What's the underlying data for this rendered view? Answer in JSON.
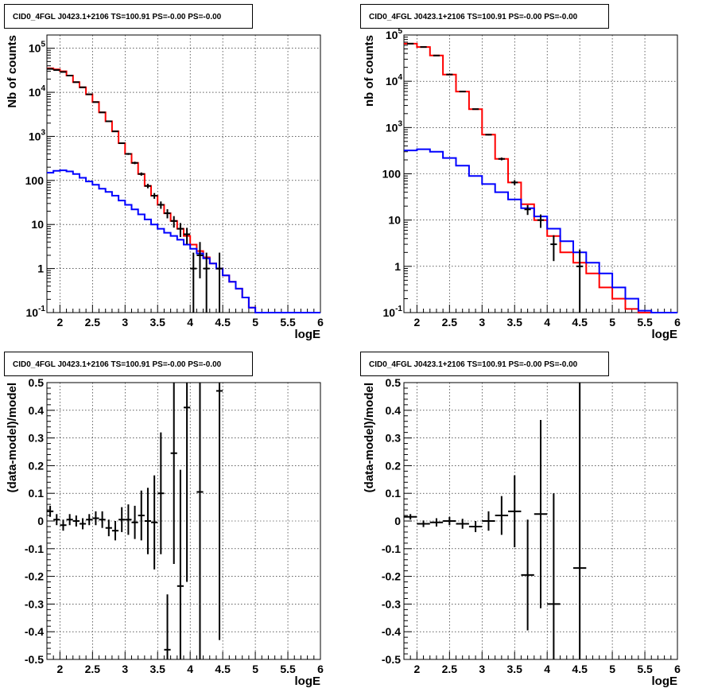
{
  "colors": {
    "model_total": "#ff0000",
    "model_bkg": "#0000ff",
    "data": "#000000",
    "grid": "#000000"
  },
  "chart_data": [
    {
      "type": "line",
      "panel": "top-left",
      "title": "CID0_4FGL J0423.1+2106 TS=100.91 PS=-0.00 PS=-0.00",
      "xlabel": "logE",
      "ylabel": "Nb of counts",
      "xlim": [
        1.8,
        6.0
      ],
      "ylim": [
        0.1,
        200000
      ],
      "yscale": "log",
      "grid": true,
      "xticks": [
        "2",
        "2.5",
        "3",
        "3.5",
        "4",
        "4.5",
        "5",
        "5.5",
        "6"
      ],
      "series": [
        {
          "role": "model-total",
          "color": "#ff0000",
          "binwidth": 0.1,
          "x": [
            1.8,
            1.9,
            2.0,
            2.1,
            2.2,
            2.3,
            2.4,
            2.5,
            2.6,
            2.7,
            2.8,
            2.9,
            3.0,
            3.1,
            3.2,
            3.3,
            3.4,
            3.5,
            3.6,
            3.7,
            3.8,
            3.9,
            4.0,
            4.1,
            4.2,
            4.3,
            4.4,
            4.5,
            4.6,
            4.7,
            4.8,
            4.9,
            5.0,
            5.1,
            5.2,
            5.3,
            5.4,
            5.5,
            5.6,
            5.7,
            5.8,
            5.9
          ],
          "y": [
            35000,
            33000,
            30000,
            24000,
            17000,
            13000,
            9000,
            6000,
            3500,
            2200,
            1300,
            700,
            400,
            250,
            140,
            75,
            45,
            28,
            18,
            12,
            8,
            5.5,
            3.5,
            2.5,
            1.8,
            1.3,
            1.0,
            0.7,
            0.5,
            0.35,
            0.22,
            0.13,
            0.1,
            0.1,
            0.1,
            0.1,
            0.1,
            0.1,
            0.1,
            0.1,
            0.1,
            0.1
          ]
        },
        {
          "role": "model-background",
          "color": "#0000ff",
          "binwidth": 0.1,
          "x": [
            1.8,
            1.9,
            2.0,
            2.1,
            2.2,
            2.3,
            2.4,
            2.5,
            2.6,
            2.7,
            2.8,
            2.9,
            3.0,
            3.1,
            3.2,
            3.3,
            3.4,
            3.5,
            3.6,
            3.7,
            3.8,
            3.9,
            4.0,
            4.1,
            4.2,
            4.3,
            4.4,
            4.5,
            4.6,
            4.7,
            4.8,
            4.9,
            5.0,
            5.1,
            5.2,
            5.3,
            5.4,
            5.5,
            5.6,
            5.7,
            5.8,
            5.9
          ],
          "y": [
            150,
            165,
            170,
            160,
            140,
            115,
            95,
            80,
            65,
            55,
            45,
            35,
            28,
            22,
            17,
            13,
            10,
            8,
            6.5,
            5.5,
            4.5,
            3.5,
            2.8,
            2.2,
            1.7,
            1.3,
            1.0,
            0.7,
            0.5,
            0.35,
            0.22,
            0.13,
            0.1,
            0.1,
            0.1,
            0.1,
            0.1,
            0.1,
            0.1,
            0.1,
            0.1,
            0.1
          ]
        },
        {
          "role": "data",
          "color": "#000000",
          "style": "errorbar",
          "x": [
            1.85,
            1.95,
            2.05,
            2.15,
            2.25,
            2.35,
            2.45,
            2.55,
            2.65,
            2.75,
            2.85,
            2.95,
            3.05,
            3.15,
            3.25,
            3.35,
            3.45,
            3.55,
            3.65,
            3.75,
            3.85,
            3.95,
            4.05,
            4.15,
            4.25,
            4.45
          ],
          "y": [
            34000,
            32000,
            29000,
            24000,
            17000,
            13000,
            9000,
            6000,
            3500,
            2200,
            1300,
            700,
            400,
            250,
            140,
            75,
            45,
            28,
            18,
            12,
            8,
            6,
            1,
            2,
            1,
            1
          ],
          "yerr_low": [
            180,
            180,
            170,
            155,
            130,
            115,
            95,
            77,
            59,
            47,
            36,
            26,
            20,
            16,
            12,
            8.7,
            6.7,
            5.3,
            4.2,
            3.5,
            2.8,
            2.4,
            0.9,
            1.4,
            0.9,
            0.9
          ],
          "yerr_high": [
            180,
            180,
            170,
            155,
            130,
            115,
            95,
            77,
            59,
            47,
            36,
            26,
            20,
            16,
            12,
            8.7,
            6.7,
            5.3,
            4.2,
            3.5,
            2.8,
            2.4,
            1.3,
            2.0,
            1.3,
            1.3
          ]
        }
      ]
    },
    {
      "type": "line",
      "panel": "top-right",
      "title": "CID0_4FGL J0423.1+2106 TS=100.91 PS=-0.00 PS=-0.00",
      "xlabel": "logE",
      "ylabel": "nb of counts",
      "xlim": [
        1.8,
        6.0
      ],
      "ylim": [
        0.1,
        100000
      ],
      "yscale": "log",
      "grid": true,
      "xticks": [
        "2",
        "2.5",
        "3",
        "3.5",
        "4",
        "4.5",
        "5",
        "5.5",
        "6"
      ],
      "series": [
        {
          "role": "model-total",
          "color": "#ff0000",
          "binwidth": 0.2,
          "x": [
            1.8,
            2.0,
            2.2,
            2.4,
            2.6,
            2.8,
            3.0,
            3.2,
            3.4,
            3.6,
            3.8,
            4.0,
            4.2,
            4.4,
            4.6,
            4.8,
            5.0,
            5.2,
            5.4,
            5.6,
            5.8
          ],
          "y": [
            65000,
            55000,
            36000,
            14000,
            6000,
            2500,
            700,
            210,
            65,
            22,
            10,
            4.5,
            2.0,
            1.2,
            0.7,
            0.35,
            0.2,
            0.12,
            0.1,
            0.1,
            0.1
          ]
        },
        {
          "role": "model-background",
          "color": "#0000ff",
          "binwidth": 0.2,
          "x": [
            1.8,
            2.0,
            2.2,
            2.4,
            2.6,
            2.8,
            3.0,
            3.2,
            3.4,
            3.6,
            3.8,
            4.0,
            4.2,
            4.4,
            4.6,
            4.8,
            5.0,
            5.2,
            5.4,
            5.6,
            5.8
          ],
          "y": [
            320,
            340,
            300,
            220,
            150,
            90,
            60,
            40,
            28,
            18,
            12,
            6.5,
            3.5,
            2.0,
            1.2,
            0.7,
            0.35,
            0.2,
            0.11,
            0.1,
            0.1
          ]
        },
        {
          "role": "data",
          "color": "#000000",
          "style": "errorbar",
          "x": [
            1.9,
            2.1,
            2.3,
            2.5,
            2.7,
            2.9,
            3.1,
            3.3,
            3.5,
            3.7,
            3.9,
            4.1,
            4.5
          ],
          "y": [
            65000,
            55000,
            36000,
            14000,
            6000,
            2500,
            700,
            210,
            65,
            17,
            10,
            3,
            1
          ],
          "yerr_low": [
            255,
            235,
            190,
            118,
            77,
            50,
            26,
            14.5,
            8,
            4.1,
            3.2,
            1.7,
            0.9
          ],
          "yerr_high": [
            255,
            235,
            190,
            118,
            77,
            50,
            26,
            14.5,
            8,
            4.1,
            3.2,
            1.7,
            1.3
          ]
        }
      ]
    },
    {
      "type": "scatter",
      "panel": "bottom-left",
      "title": "CID0_4FGL J0423.1+2106 TS=100.91 PS=-0.00 PS=-0.00",
      "xlabel": "logE",
      "ylabel": "(data-model)/model",
      "xlim": [
        1.8,
        6.0
      ],
      "ylim": [
        -0.5,
        0.5
      ],
      "yscale": "linear",
      "grid": true,
      "xticks": [
        "2",
        "2.5",
        "3",
        "3.5",
        "4",
        "4.5",
        "5",
        "5.5",
        "6"
      ],
      "yticks": [
        "-0.5",
        "-0.4",
        "-0.3",
        "-0.2",
        "-0.1",
        "0",
        "0.1",
        "0.2",
        "0.3",
        "0.4",
        "0.5"
      ],
      "series": [
        {
          "role": "residuals",
          "color": "#000000",
          "style": "errorbar",
          "binwidth": 0.1,
          "x": [
            1.85,
            1.95,
            2.05,
            2.15,
            2.25,
            2.35,
            2.45,
            2.55,
            2.65,
            2.75,
            2.85,
            2.95,
            3.05,
            3.15,
            3.25,
            3.35,
            3.45,
            3.55,
            3.65,
            3.75,
            3.85,
            3.95,
            4.15,
            4.45
          ],
          "y": [
            0.035,
            0.005,
            -0.015,
            0.005,
            0.0,
            -0.01,
            0.005,
            0.01,
            0.005,
            -0.025,
            -0.035,
            0.005,
            0.005,
            -0.005,
            0.02,
            0.0,
            -0.005,
            0.1,
            -0.465,
            0.245,
            -0.235,
            0.41,
            0.105,
            0.47
          ],
          "yerr": [
            0.02,
            0.02,
            0.02,
            0.02,
            0.02,
            0.02,
            0.02,
            0.025,
            0.03,
            0.03,
            0.035,
            0.045,
            0.055,
            0.06,
            0.09,
            0.12,
            0.17,
            0.22,
            0.2,
            0.4,
            0.42,
            0.63,
            0.9,
            0.9
          ]
        }
      ]
    },
    {
      "type": "scatter",
      "panel": "bottom-right",
      "title": "CID0_4FGL J0423.1+2106 TS=100.91 PS=-0.00 PS=-0.00",
      "xlabel": "logE",
      "ylabel": "(data-model)/model",
      "xlim": [
        1.8,
        6.0
      ],
      "ylim": [
        -0.5,
        0.5
      ],
      "yscale": "linear",
      "grid": true,
      "xticks": [
        "2",
        "2.5",
        "3",
        "3.5",
        "4",
        "4.5",
        "5",
        "5.5",
        "6"
      ],
      "yticks": [
        "-0.5",
        "-0.4",
        "-0.3",
        "-0.2",
        "-0.1",
        "0",
        "0.1",
        "0.2",
        "0.3",
        "0.4",
        "0.5"
      ],
      "series": [
        {
          "role": "residuals",
          "color": "#000000",
          "style": "errorbar",
          "binwidth": 0.2,
          "x": [
            1.9,
            2.1,
            2.3,
            2.5,
            2.7,
            2.9,
            3.1,
            3.3,
            3.5,
            3.7,
            3.9,
            4.1,
            4.5
          ],
          "y": [
            0.015,
            -0.01,
            -0.005,
            0.0,
            -0.01,
            -0.02,
            0.0,
            0.02,
            0.035,
            -0.195,
            0.025,
            -0.3,
            -0.17
          ],
          "yerr": [
            0.01,
            0.012,
            0.015,
            0.015,
            0.018,
            0.02,
            0.035,
            0.07,
            0.13,
            0.2,
            0.34,
            0.4,
            0.9
          ]
        }
      ]
    }
  ]
}
